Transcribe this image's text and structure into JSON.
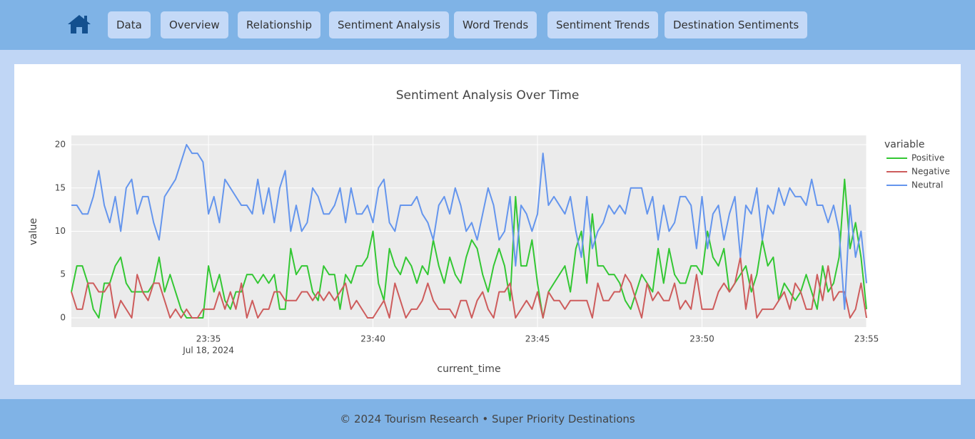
{
  "nav": {
    "items": [
      "Data",
      "Overview",
      "Relationship",
      "Sentiment Analysis",
      "Word Trends",
      "Sentiment Trends",
      "Destination Sentiments"
    ]
  },
  "footer": "© 2024 Tourism Research • Super Priority Destinations",
  "chart_data": {
    "type": "line",
    "title": "Sentiment Analysis Over Time",
    "x_label": "current_time",
    "y_label": "value",
    "legend_title": "variable",
    "x_sublabel": "Jul 18, 2024",
    "grid": true,
    "legend": "right",
    "x": [
      "2024-07-18 23:30:50",
      "2024-07-18 23:31:00",
      "2024-07-18 23:31:10",
      "2024-07-18 23:31:20",
      "2024-07-18 23:31:30",
      "2024-07-18 23:31:40",
      "2024-07-18 23:31:50",
      "2024-07-18 23:32:00",
      "2024-07-18 23:32:10",
      "2024-07-18 23:32:20",
      "2024-07-18 23:32:30",
      "2024-07-18 23:32:40",
      "2024-07-18 23:32:50",
      "2024-07-18 23:33:00",
      "2024-07-18 23:33:10",
      "2024-07-18 23:33:20",
      "2024-07-18 23:33:30",
      "2024-07-18 23:33:40",
      "2024-07-18 23:33:50",
      "2024-07-18 23:34:00",
      "2024-07-18 23:34:10",
      "2024-07-18 23:34:20",
      "2024-07-18 23:34:30",
      "2024-07-18 23:34:40",
      "2024-07-18 23:34:50",
      "2024-07-18 23:35:00",
      "2024-07-18 23:35:10",
      "2024-07-18 23:35:20",
      "2024-07-18 23:35:30",
      "2024-07-18 23:35:40",
      "2024-07-18 23:35:50",
      "2024-07-18 23:36:00",
      "2024-07-18 23:36:10",
      "2024-07-18 23:36:20",
      "2024-07-18 23:36:30",
      "2024-07-18 23:36:40",
      "2024-07-18 23:36:50",
      "2024-07-18 23:37:00",
      "2024-07-18 23:37:10",
      "2024-07-18 23:37:20",
      "2024-07-18 23:37:30",
      "2024-07-18 23:37:40",
      "2024-07-18 23:37:50",
      "2024-07-18 23:38:00",
      "2024-07-18 23:38:10",
      "2024-07-18 23:38:20",
      "2024-07-18 23:38:30",
      "2024-07-18 23:38:40",
      "2024-07-18 23:38:50",
      "2024-07-18 23:39:00",
      "2024-07-18 23:39:10",
      "2024-07-18 23:39:20",
      "2024-07-18 23:39:30",
      "2024-07-18 23:39:40",
      "2024-07-18 23:39:50",
      "2024-07-18 23:40:00",
      "2024-07-18 23:40:10",
      "2024-07-18 23:40:20",
      "2024-07-18 23:40:30",
      "2024-07-18 23:40:40",
      "2024-07-18 23:40:50",
      "2024-07-18 23:41:00",
      "2024-07-18 23:41:10",
      "2024-07-18 23:41:20",
      "2024-07-18 23:41:30",
      "2024-07-18 23:41:40",
      "2024-07-18 23:41:50",
      "2024-07-18 23:42:00",
      "2024-07-18 23:42:10",
      "2024-07-18 23:42:20",
      "2024-07-18 23:42:30",
      "2024-07-18 23:42:40",
      "2024-07-18 23:42:50",
      "2024-07-18 23:43:00",
      "2024-07-18 23:43:10",
      "2024-07-18 23:43:20",
      "2024-07-18 23:43:30",
      "2024-07-18 23:43:40",
      "2024-07-18 23:43:50",
      "2024-07-18 23:44:00",
      "2024-07-18 23:44:10",
      "2024-07-18 23:44:20",
      "2024-07-18 23:44:30",
      "2024-07-18 23:44:40",
      "2024-07-18 23:44:50",
      "2024-07-18 23:45:00",
      "2024-07-18 23:45:10",
      "2024-07-18 23:45:20",
      "2024-07-18 23:45:30",
      "2024-07-18 23:45:40",
      "2024-07-18 23:45:50",
      "2024-07-18 23:46:00",
      "2024-07-18 23:46:10",
      "2024-07-18 23:46:20",
      "2024-07-18 23:46:30",
      "2024-07-18 23:46:40",
      "2024-07-18 23:46:50",
      "2024-07-18 23:47:00",
      "2024-07-18 23:47:10",
      "2024-07-18 23:47:20",
      "2024-07-18 23:47:30",
      "2024-07-18 23:47:40",
      "2024-07-18 23:47:50",
      "2024-07-18 23:48:00",
      "2024-07-18 23:48:10",
      "2024-07-18 23:48:20",
      "2024-07-18 23:48:30",
      "2024-07-18 23:48:40",
      "2024-07-18 23:48:50",
      "2024-07-18 23:49:00",
      "2024-07-18 23:49:10",
      "2024-07-18 23:49:20",
      "2024-07-18 23:49:30",
      "2024-07-18 23:49:40",
      "2024-07-18 23:49:50",
      "2024-07-18 23:50:00",
      "2024-07-18 23:50:10",
      "2024-07-18 23:50:20",
      "2024-07-18 23:50:30",
      "2024-07-18 23:50:40",
      "2024-07-18 23:50:50",
      "2024-07-18 23:51:00",
      "2024-07-18 23:51:10",
      "2024-07-18 23:51:20",
      "2024-07-18 23:51:30",
      "2024-07-18 23:51:40",
      "2024-07-18 23:51:50",
      "2024-07-18 23:52:00",
      "2024-07-18 23:52:10",
      "2024-07-18 23:52:20",
      "2024-07-18 23:52:30",
      "2024-07-18 23:52:40",
      "2024-07-18 23:52:50",
      "2024-07-18 23:53:00",
      "2024-07-18 23:53:10",
      "2024-07-18 23:53:20",
      "2024-07-18 23:53:30",
      "2024-07-18 23:53:40",
      "2024-07-18 23:53:50",
      "2024-07-18 23:54:00",
      "2024-07-18 23:54:10",
      "2024-07-18 23:54:20",
      "2024-07-18 23:54:30",
      "2024-07-18 23:54:40",
      "2024-07-18 23:54:50",
      "2024-07-18 23:55:00"
    ],
    "series": [
      {
        "name": "Positive",
        "color": "#33c733",
        "values": [
          3,
          6,
          6,
          4,
          1,
          0,
          4,
          4,
          6,
          7,
          4,
          3,
          3,
          3,
          3,
          4,
          7,
          3,
          5,
          3,
          1,
          0,
          0,
          0,
          0,
          6,
          3,
          5,
          2,
          1,
          3,
          3,
          5,
          5,
          4,
          5,
          4,
          5,
          1,
          1,
          8,
          5,
          6,
          6,
          3,
          2,
          6,
          5,
          5,
          1,
          5,
          4,
          6,
          6,
          7,
          10,
          4,
          2,
          8,
          6,
          5,
          7,
          6,
          4,
          6,
          5,
          9,
          6,
          4,
          7,
          5,
          4,
          7,
          9,
          8,
          5,
          3,
          6,
          8,
          6,
          2,
          14,
          6,
          6,
          9,
          4,
          0,
          3,
          4,
          5,
          6,
          3,
          8,
          10,
          4,
          12,
          6,
          6,
          5,
          5,
          4,
          2,
          1,
          3,
          5,
          4,
          3,
          8,
          4,
          8,
          5,
          4,
          4,
          6,
          6,
          5,
          10,
          7,
          6,
          8,
          3,
          4,
          5,
          6,
          3,
          5,
          9,
          6,
          7,
          2,
          4,
          3,
          2,
          3,
          5,
          3,
          1,
          6,
          3,
          4,
          7,
          16,
          8,
          11,
          7,
          1
        ]
      },
      {
        "name": "Negative",
        "color": "#cd5c5c",
        "values": [
          3,
          1,
          1,
          4,
          4,
          3,
          3,
          4,
          0,
          2,
          1,
          0,
          5,
          3,
          2,
          4,
          4,
          2,
          0,
          1,
          0,
          1,
          0,
          0,
          1,
          1,
          1,
          3,
          1,
          3,
          1,
          4,
          0,
          2,
          0,
          1,
          1,
          3,
          3,
          2,
          2,
          2,
          3,
          3,
          2,
          3,
          2,
          3,
          2,
          3,
          4,
          1,
          2,
          1,
          0,
          0,
          1,
          2,
          0,
          4,
          2,
          0,
          1,
          1,
          2,
          4,
          2,
          1,
          1,
          1,
          0,
          2,
          2,
          0,
          2,
          3,
          1,
          0,
          3,
          3,
          4,
          0,
          1,
          2,
          1,
          3,
          0,
          3,
          2,
          2,
          1,
          2,
          2,
          2,
          2,
          0,
          4,
          2,
          2,
          3,
          3,
          5,
          4,
          2,
          0,
          4,
          2,
          3,
          2,
          2,
          4,
          1,
          2,
          1,
          5,
          1,
          1,
          1,
          3,
          4,
          3,
          4,
          7,
          1,
          5,
          0,
          1,
          1,
          1,
          2,
          3,
          1,
          4,
          3,
          1,
          1,
          5,
          2,
          6,
          2,
          3,
          3,
          0,
          1,
          4,
          0
        ]
      },
      {
        "name": "Neutral",
        "color": "#6495ed",
        "values": [
          13,
          13,
          12,
          12,
          14,
          17,
          13,
          11,
          14,
          10,
          15,
          16,
          12,
          14,
          14,
          11,
          9,
          14,
          15,
          16,
          18,
          20,
          19,
          19,
          18,
          12,
          14,
          11,
          16,
          15,
          14,
          13,
          13,
          12,
          16,
          12,
          15,
          11,
          15,
          17,
          10,
          13,
          10,
          11,
          15,
          14,
          12,
          12,
          13,
          15,
          11,
          15,
          12,
          12,
          13,
          11,
          15,
          16,
          11,
          10,
          13,
          13,
          13,
          14,
          12,
          11,
          9,
          13,
          14,
          12,
          15,
          13,
          10,
          11,
          9,
          12,
          15,
          13,
          9,
          10,
          14,
          6,
          13,
          12,
          10,
          12,
          19,
          13,
          14,
          13,
          12,
          14,
          10,
          7,
          14,
          8,
          10,
          11,
          13,
          12,
          13,
          12,
          15,
          15,
          15,
          12,
          14,
          9,
          13,
          10,
          11,
          14,
          14,
          13,
          8,
          14,
          8,
          12,
          13,
          9,
          12,
          14,
          7,
          13,
          12,
          15,
          9,
          13,
          12,
          15,
          13,
          15,
          14,
          14,
          13,
          16,
          13,
          13,
          11,
          13,
          10,
          1,
          13,
          7,
          10,
          4
        ]
      }
    ],
    "xlim": [
      "2024-07-18 23:30:50",
      "2024-07-18 23:55:00"
    ],
    "xticks": [
      {
        "value": "2024-07-18 23:35:00",
        "label": "23:35"
      },
      {
        "value": "2024-07-18 23:40:00",
        "label": "23:40"
      },
      {
        "value": "2024-07-18 23:45:00",
        "label": "23:45"
      },
      {
        "value": "2024-07-18 23:50:00",
        "label": "23:50"
      },
      {
        "value": "2024-07-18 23:55:00",
        "label": "23:55"
      }
    ],
    "ylim": [
      -1.07,
      21.07
    ],
    "yticks": [
      0,
      5,
      10,
      15,
      20
    ]
  }
}
